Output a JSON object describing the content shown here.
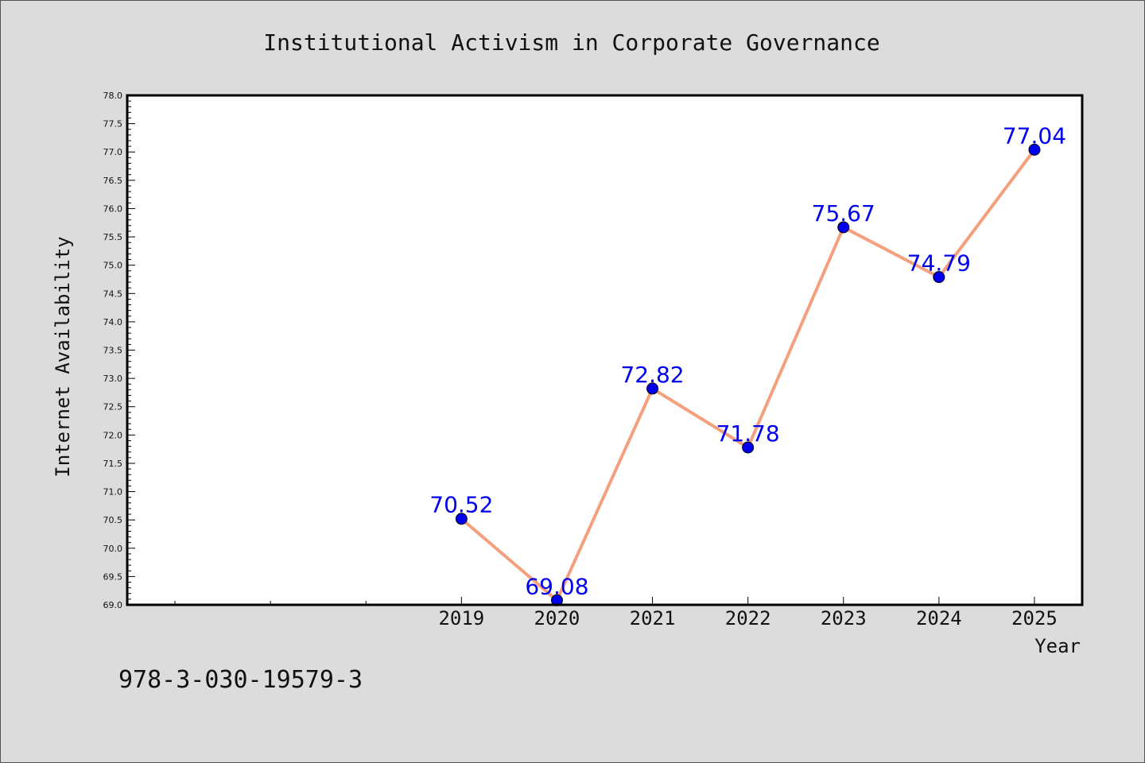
{
  "chart_data": {
    "type": "line",
    "title": "Institutional Activism in Corporate Governance",
    "xlabel": "Year",
    "ylabel": "Internet Availability",
    "categories": [
      "2019",
      "2020",
      "2021",
      "2022",
      "2023",
      "2024",
      "2025"
    ],
    "x": [
      2019,
      2020,
      2021,
      2022,
      2023,
      2024,
      2025
    ],
    "series": [
      {
        "values": [
          70.52,
          69.08,
          72.82,
          71.78,
          75.67,
          74.79,
          77.04
        ],
        "data_labels": [
          "70.52",
          "69.08",
          "72.82",
          "71.78",
          "75.67",
          "74.79",
          "77.04"
        ],
        "line_color": "#f4a07c",
        "marker_color": "#0000ee",
        "label_color": "#0000ee"
      }
    ],
    "xlim": [
      2015.5,
      2025.5
    ],
    "ylim": [
      69.0,
      78.0
    ],
    "y_ticks": [
      "69.0",
      "69.5",
      "70.0",
      "70.5",
      "71.0",
      "71.5",
      "72.0",
      "72.5",
      "73.0",
      "73.5",
      "74.0",
      "74.5",
      "75.0",
      "75.5",
      "76.0",
      "76.5",
      "77.0",
      "77.5",
      "78.0"
    ],
    "grid": false,
    "legend": "none"
  },
  "annotation": "978-3-030-19579-3",
  "colors": {
    "background": "#dcdcdc",
    "plot_background": "#ffffff",
    "axis": "#000000",
    "text": "#111111"
  }
}
